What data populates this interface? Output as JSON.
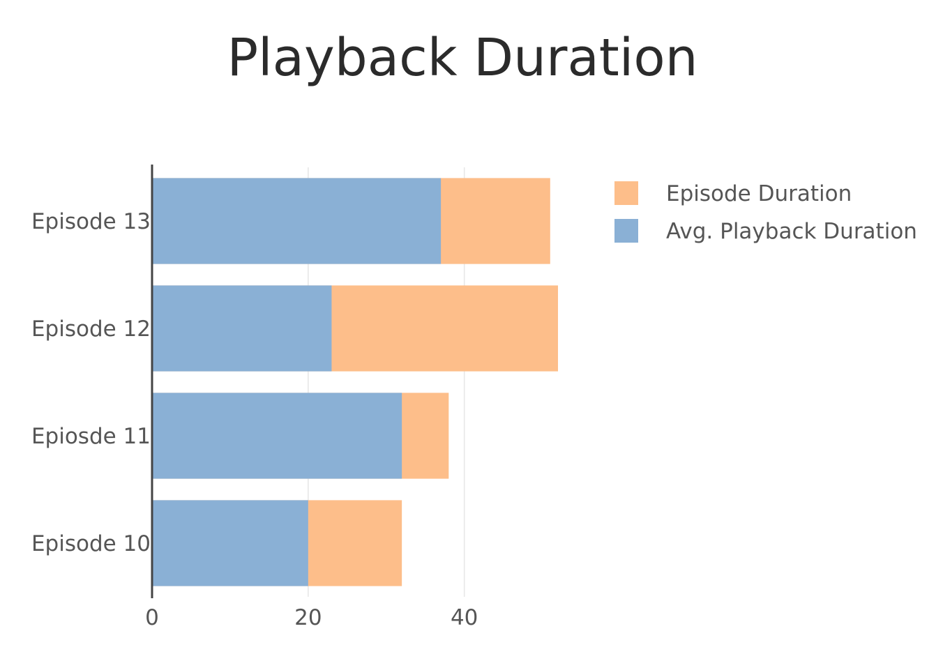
{
  "chart_data": {
    "type": "bar",
    "orientation": "horizontal",
    "barmode": "overlay",
    "title": "Playback Duration",
    "xlabel": "",
    "ylabel": "",
    "categories": [
      "Episode 10",
      "Epiosde 11",
      "Episode 12",
      "Episode 13"
    ],
    "series": [
      {
        "name": "Episode Duration",
        "color": "#FDBE8A",
        "values": [
          32,
          38,
          52,
          51
        ]
      },
      {
        "name": "Avg. Playback Duration",
        "color": "#8AB0D5",
        "values": [
          20,
          32,
          23,
          37
        ]
      }
    ],
    "xlim": [
      0,
      52
    ],
    "xticks": [
      0,
      20,
      40
    ],
    "grid": true,
    "legend": {
      "placement": "top-right",
      "order": [
        "Episode Duration",
        "Avg. Playback Duration"
      ]
    }
  }
}
